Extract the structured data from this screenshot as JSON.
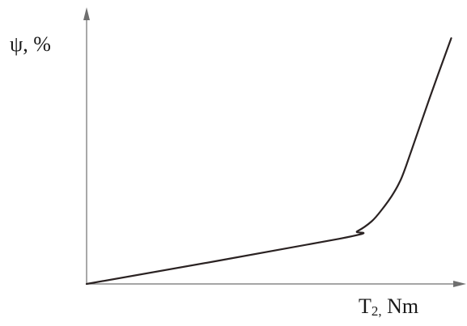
{
  "chart_data": {
    "type": "line",
    "title": "",
    "ylabel": "ψ, %",
    "xlabel_main": "T",
    "xlabel_sub": "2,",
    "xlabel_unit": " Nm",
    "ticks": "none",
    "grid": false,
    "legend": "none",
    "xlim": [
      0,
      100
    ],
    "ylim": [
      0,
      100
    ],
    "series": [
      {
        "x": [
          0,
          70,
          75,
          79,
          82,
          84.5,
          86.5,
          88.5,
          95,
          101
        ],
        "y": [
          0,
          18,
          21,
          25,
          30,
          35,
          40,
          47,
          74,
          98
        ]
      }
    ],
    "colors": {
      "axis": "#6f6f6f",
      "line": "#2a2222"
    }
  }
}
